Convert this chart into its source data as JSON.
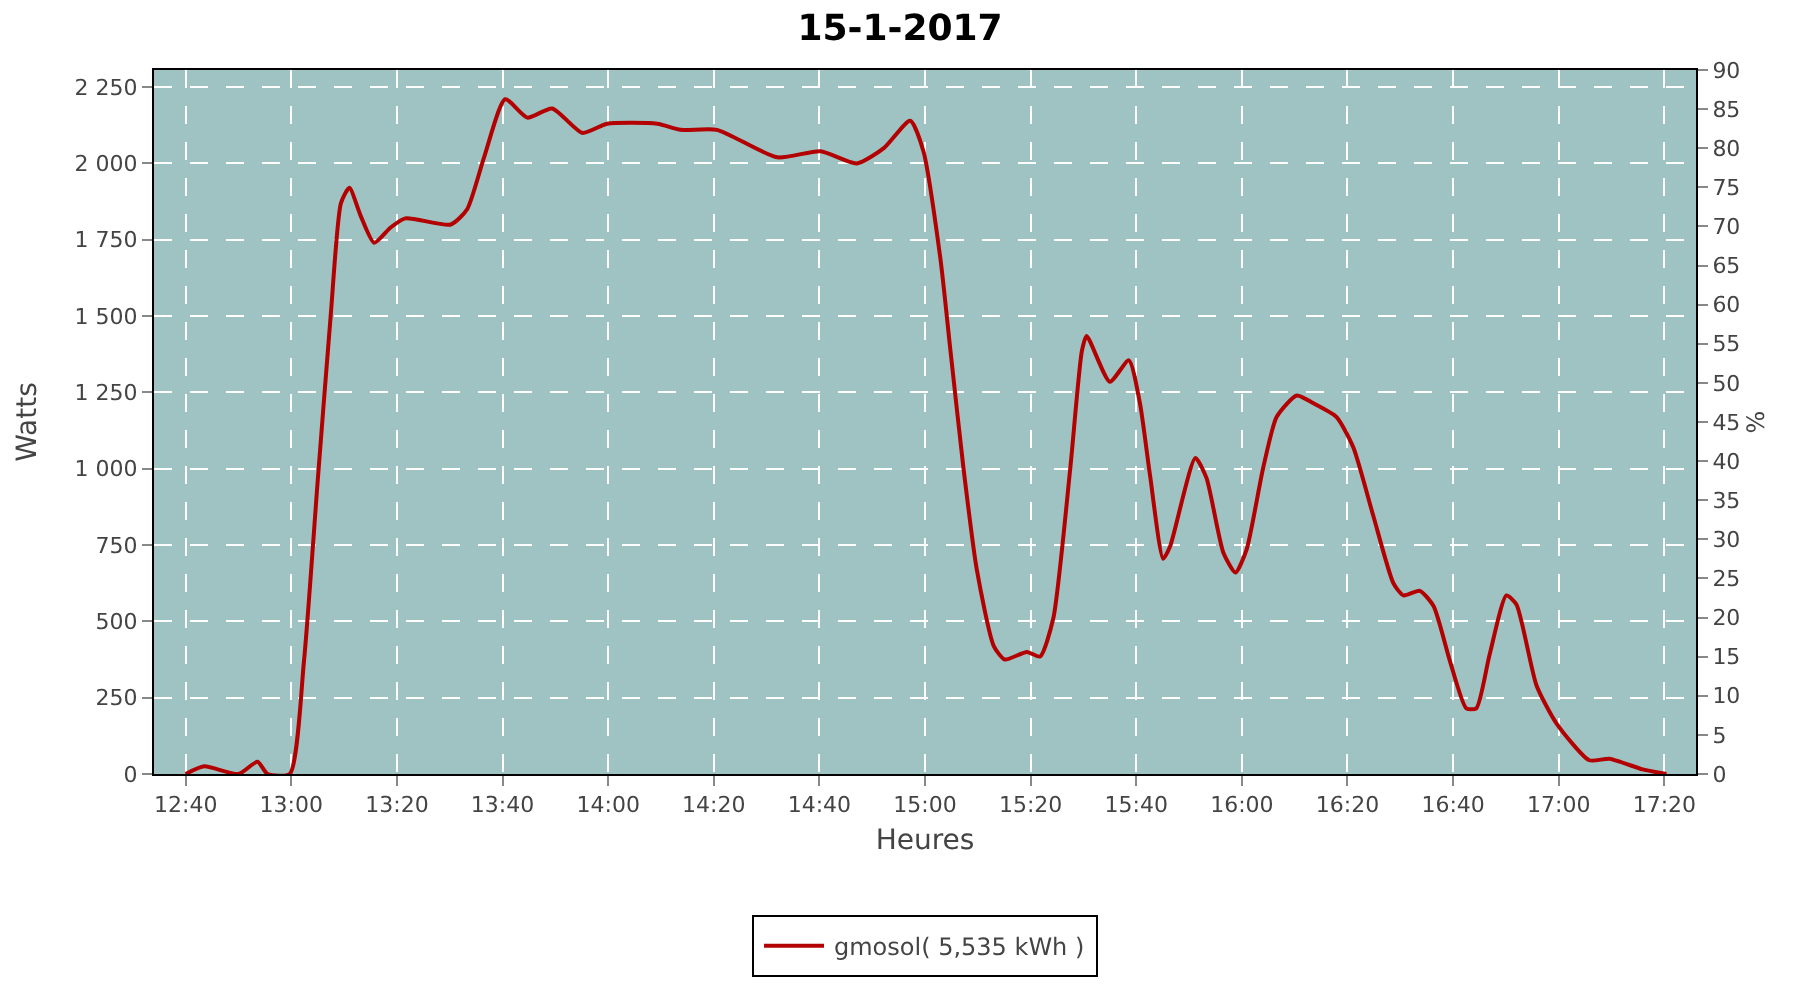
{
  "chart_data": {
    "type": "line",
    "title": "15-1-2017",
    "xlabel": "Heures",
    "ylabel": "Watts",
    "y2label": "%",
    "x": [
      "2017-01-15T12:40",
      "2017-01-15T12:43:30",
      "2017-01-15T12:50",
      "2017-01-15T12:53:36",
      "2017-01-15T12:55:30",
      "2017-01-15T12:59:42",
      "2017-01-15T13:02:24",
      "2017-01-15T13:05",
      "2017-01-15T13:07:30",
      "2017-01-15T13:09:24",
      "2017-01-15T13:11",
      "2017-01-15T13:13:06",
      "2017-01-15T13:15:42",
      "2017-01-15T13:18:48",
      "2017-01-15T13:21:36",
      "2017-01-15T13:30:12",
      "2017-01-15T13:33:18",
      "2017-01-15T13:36:30",
      "2017-01-15T13:40:30",
      "2017-01-15T13:44:42",
      "2017-01-15T13:49:24",
      "2017-01-15T13:55:06",
      "2017-01-15T13:59:48",
      "2017-01-15T14:09:18",
      "2017-01-15T14:13:42",
      "2017-01-15T14:20:36",
      "2017-01-15T14:32",
      "2017-01-15T14:40:12",
      "2017-01-15T14:47:06",
      "2017-01-15T14:52:12",
      "2017-01-15T14:57:12",
      "2017-01-15T14:59:42",
      "2017-01-15T15:02:54",
      "2017-01-15T15:04:48",
      "2017-01-15T15:07:18",
      "2017-01-15T15:09:48",
      "2017-01-15T15:13",
      "2017-01-15T15:15:06",
      "2017-01-15T15:19:18",
      "2017-01-15T15:21:48",
      "2017-01-15T15:24:18",
      "2017-01-15T15:27:30",
      "2017-01-15T15:29:42",
      "2017-01-15T15:30:36",
      "2017-01-15T15:35",
      "2017-01-15T15:38:36",
      "2017-01-15T15:40:42",
      "2017-01-15T15:42:36",
      "2017-01-15T15:45:06",
      "2017-01-15T15:46:24",
      "2017-01-15T15:51:12",
      "2017-01-15T15:53:18",
      "2017-01-15T15:56:30",
      "2017-01-15T15:58:48",
      "2017-01-15T16:00:54",
      "2017-01-15T16:04",
      "2017-01-15T16:06:36",
      "2017-01-15T16:10:24",
      "2017-01-15T16:13:30",
      "2017-01-15T16:17:54",
      "2017-01-15T16:21:06",
      "2017-01-15T16:24:54",
      "2017-01-15T16:28:42",
      "2017-01-15T16:30:36",
      "2017-01-15T16:33:42",
      "2017-01-15T16:36:18",
      "2017-01-15T16:39:24",
      "2017-01-15T16:42:30",
      "2017-01-15T16:44:24",
      "2017-01-15T16:46:54",
      "2017-01-15T16:50:06",
      "2017-01-15T16:52",
      "2017-01-15T16:55:48",
      "2017-01-15T16:59:36",
      "2017-01-15T17:05:48",
      "2017-01-15T17:09:36",
      "2017-01-15T17:15:54",
      "2017-01-15T17:20:24"
    ],
    "series": [
      {
        "name": "gmosol( 5,535 kWh )",
        "color": "#b30000",
        "values": [
          0,
          25,
          0,
          40,
          0,
          0,
          370,
          960,
          1510,
          1870,
          1920,
          1830,
          1740,
          1790,
          1820,
          1800,
          1850,
          2020,
          2210,
          2150,
          2180,
          2100,
          2130,
          2130,
          2110,
          2110,
          2020,
          2040,
          2000,
          2050,
          2140,
          2040,
          1690,
          1390,
          1000,
          670,
          420,
          375,
          400,
          385,
          510,
          1000,
          1385,
          1435,
          1285,
          1355,
          1215,
          980,
          705,
          745,
          1035,
          970,
          725,
          660,
          735,
          1000,
          1170,
          1240,
          1215,
          1170,
          1070,
          845,
          625,
          585,
          600,
          550,
          370,
          215,
          215,
          390,
          585,
          555,
          290,
          165,
          45,
          50,
          15,
          0
        ]
      }
    ],
    "xlim": [
      "2017-01-15T12:34",
      "2017-01-15T17:26"
    ],
    "xticks": [
      {
        "value": "2017-01-15T12:40",
        "label": "12:40"
      },
      {
        "value": "2017-01-15T13:00",
        "label": "13:00"
      },
      {
        "value": "2017-01-15T13:20",
        "label": "13:20"
      },
      {
        "value": "2017-01-15T13:40",
        "label": "13:40"
      },
      {
        "value": "2017-01-15T14:00",
        "label": "14:00"
      },
      {
        "value": "2017-01-15T14:20",
        "label": "14:20"
      },
      {
        "value": "2017-01-15T14:40",
        "label": "14:40"
      },
      {
        "value": "2017-01-15T15:00",
        "label": "15:00"
      },
      {
        "value": "2017-01-15T15:20",
        "label": "15:20"
      },
      {
        "value": "2017-01-15T15:40",
        "label": "15:40"
      },
      {
        "value": "2017-01-15T16:00",
        "label": "16:00"
      },
      {
        "value": "2017-01-15T16:20",
        "label": "16:20"
      },
      {
        "value": "2017-01-15T16:40",
        "label": "16:40"
      },
      {
        "value": "2017-01-15T17:00",
        "label": "17:00"
      },
      {
        "value": "2017-01-15T17:20",
        "label": "17:20"
      }
    ],
    "ylim": [
      0,
      2306
    ],
    "yticks": [
      0,
      250,
      500,
      750,
      {
        "value": 1000,
        "label": "1 000"
      },
      {
        "value": 1250,
        "label": "1 250"
      },
      {
        "value": 1500,
        "label": "1 500"
      },
      {
        "value": 1750,
        "label": "1 750"
      },
      {
        "value": 2000,
        "label": "2 000"
      },
      {
        "value": 2250,
        "label": "2 250"
      }
    ],
    "y2lim": [
      0,
      90
    ],
    "y2ticks": [
      0,
      5,
      10,
      15,
      20,
      25,
      30,
      35,
      40,
      45,
      50,
      55,
      60,
      65,
      70,
      75,
      80,
      85,
      90
    ],
    "grid": true,
    "legend": "bottom",
    "marker": "none",
    "line_style": "solid"
  }
}
